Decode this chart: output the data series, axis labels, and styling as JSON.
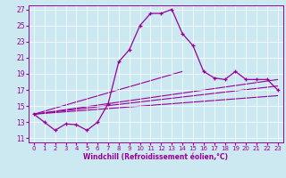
{
  "xlabel": "Windchill (Refroidissement éolien,°C)",
  "background_color": "#cce8f0",
  "line_color": "#990099",
  "xlim": [
    -0.5,
    23.5
  ],
  "ylim": [
    10.5,
    27.5
  ],
  "yticks": [
    11,
    13,
    15,
    17,
    19,
    21,
    23,
    25,
    27
  ],
  "xticks": [
    0,
    1,
    2,
    3,
    4,
    5,
    6,
    7,
    8,
    9,
    10,
    11,
    12,
    13,
    14,
    15,
    16,
    17,
    18,
    19,
    20,
    21,
    22,
    23
  ],
  "main_series": {
    "x": [
      0,
      1,
      2,
      3,
      4,
      5,
      6,
      7,
      8,
      9,
      10,
      11,
      12,
      13,
      14,
      15,
      16,
      17,
      18,
      19,
      20,
      21,
      22,
      23
    ],
    "y": [
      14.0,
      13.0,
      12.0,
      12.8,
      12.7,
      12.0,
      13.0,
      15.3,
      20.5,
      22.0,
      25.0,
      26.5,
      26.5,
      27.0,
      24.0,
      22.5,
      19.3,
      18.5,
      18.3,
      19.3,
      18.3,
      18.3,
      18.3,
      17.0
    ]
  },
  "fan_lines": [
    {
      "x": [
        0,
        23
      ],
      "y": [
        14.0,
        16.3
      ]
    },
    {
      "x": [
        0,
        23
      ],
      "y": [
        14.0,
        17.5
      ]
    },
    {
      "x": [
        0,
        23
      ],
      "y": [
        14.0,
        18.3
      ]
    },
    {
      "x": [
        0,
        14
      ],
      "y": [
        14.0,
        19.3
      ]
    }
  ]
}
